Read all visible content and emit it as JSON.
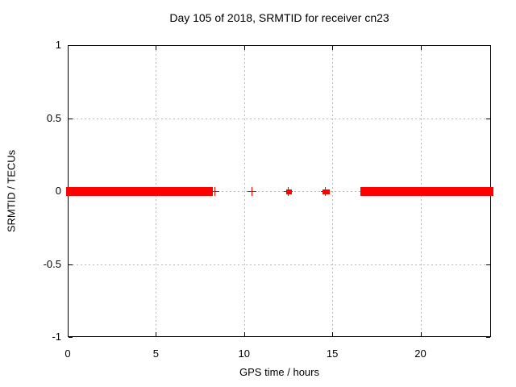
{
  "chart_data": {
    "type": "scatter",
    "title": "Day 105 of 2018, SRMTID for receiver cn23",
    "xlabel": "GPS time / hours",
    "ylabel": "SRMTID / TECUs",
    "xlim": [
      0,
      24
    ],
    "ylim": [
      -1,
      1
    ],
    "xticks": {
      "values": [
        0,
        5,
        10,
        15,
        20
      ],
      "labels": [
        "0",
        "5",
        "10",
        "15",
        "20"
      ]
    },
    "yticks": {
      "values": [
        1,
        0.5,
        0,
        -0.5,
        -1
      ],
      "labels": [
        "1",
        "0.5",
        "0",
        "-0.5",
        "-1"
      ]
    },
    "grid": true,
    "legend": "none",
    "marker": "plus",
    "colors": {
      "series": "#ff0000",
      "grid": "#b9b9b9",
      "axis": "#000000",
      "background": "#ffffff"
    },
    "series_name": "SRMTID",
    "dense_segments": [
      {
        "x_start": 0.0,
        "x_end": 8.05,
        "y": 0
      },
      {
        "x_start": 16.7,
        "x_end": 23.95,
        "y": 0
      }
    ],
    "sparse_points": [
      {
        "x": 8.3,
        "y": 0,
        "cluster_width": 0
      },
      {
        "x": 10.4,
        "y": 0,
        "cluster_width": 0
      },
      {
        "x": 12.5,
        "y": 0,
        "cluster_width": 0.3
      },
      {
        "x": 14.6,
        "y": 0,
        "cluster_width": 0.38
      }
    ]
  }
}
